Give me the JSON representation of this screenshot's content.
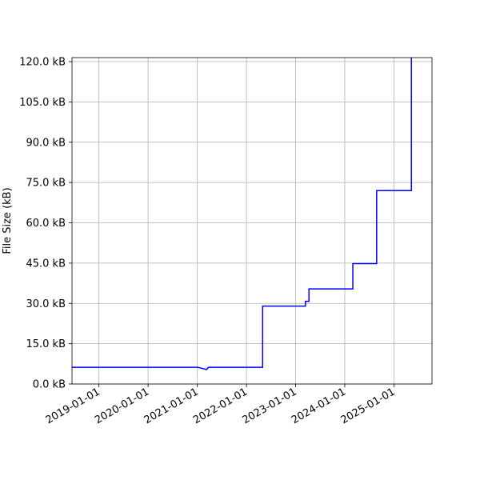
{
  "chart_data": {
    "type": "line",
    "title": "",
    "xlabel": "",
    "ylabel": "File Size (kB)",
    "x_type": "date",
    "xlim": [
      "2018-06-15",
      "2025-10-10"
    ],
    "ylim": [
      0,
      121.5
    ],
    "grid": true,
    "legend": "none",
    "x_ticks": [
      "2019-01-01",
      "2020-01-01",
      "2021-01-01",
      "2022-01-01",
      "2023-01-01",
      "2024-01-01",
      "2025-01-01"
    ],
    "y_ticks": [
      0,
      15,
      30,
      45,
      60,
      75,
      90,
      105,
      120
    ],
    "y_tick_labels": [
      "0.0 kB",
      "15.0 kB",
      "30.0 kB",
      "45.0 kB",
      "60.0 kB",
      "75.0 kB",
      "90.0 kB",
      "105.0 kB",
      "120.0 kB"
    ],
    "series": [
      {
        "color": "#0000ff",
        "x": [
          "2018-06-15",
          "2021-01-05",
          "2021-03-10",
          "2021-03-25",
          "2022-05-01",
          "2022-05-01",
          "2023-03-15",
          "2023-03-15",
          "2023-04-10",
          "2023-04-10",
          "2024-03-01",
          "2024-03-01",
          "2024-08-25",
          "2024-08-25",
          "2025-05-10",
          "2025-05-10"
        ],
        "y": [
          6.2,
          6.2,
          5.4,
          6.2,
          6.2,
          29.0,
          29.0,
          30.8,
          30.8,
          35.4,
          35.4,
          44.8,
          44.8,
          72.0,
          72.0,
          121.5
        ]
      }
    ]
  }
}
